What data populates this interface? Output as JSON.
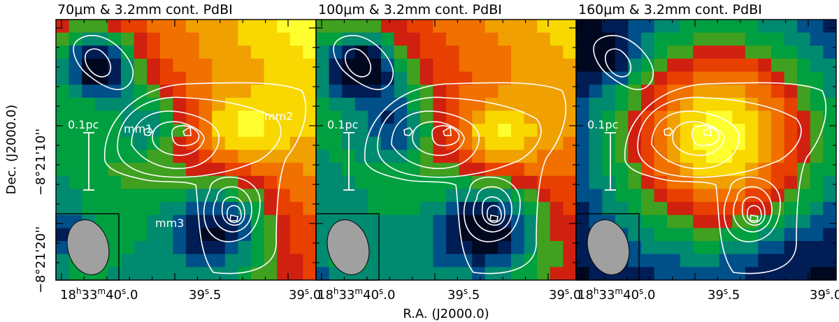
{
  "figure": {
    "panels": [
      {
        "title_prefix": "70",
        "title_suffix": "m & 3.2mm cont. PdBI",
        "mu": "μ"
      },
      {
        "title_prefix": "100",
        "title_suffix": "m & 3.2mm cont. PdBI",
        "mu": "μ"
      },
      {
        "title_prefix": "160",
        "title_suffix": "m & 3.2mm cont. PdBI",
        "mu": "μ"
      }
    ],
    "scale_bar": "0.1pc",
    "sources": {
      "mm1": "mm1",
      "mm2": "mm2",
      "mm3": "mm3"
    },
    "x_axis": {
      "label": "R.A. (J2000.0)",
      "ticks": [
        {
          "h": "18",
          "hu": "h",
          "m": "33",
          "mu": "m",
          "s": "40",
          "su": "s",
          "frac": ".0"
        },
        {
          "s": "39",
          "su": "s",
          "frac": ".5"
        },
        {
          "s": "39",
          "su": "s",
          "frac": ".0"
        }
      ]
    },
    "y_axis": {
      "label": "Dec. (J2000.0)",
      "ticks": [
        "−8°21'10''",
        "−8°21'20''"
      ]
    },
    "colors": {
      "colormap": [
        "#000820",
        "#001e55",
        "#00508a",
        "#008a70",
        "#00a040",
        "#40a020",
        "#d02010",
        "#e84000",
        "#f07000",
        "#f0a000",
        "#f8d800",
        "#ffff30"
      ],
      "contour": "#ffffff",
      "beam": "#a0a0a0"
    }
  }
}
